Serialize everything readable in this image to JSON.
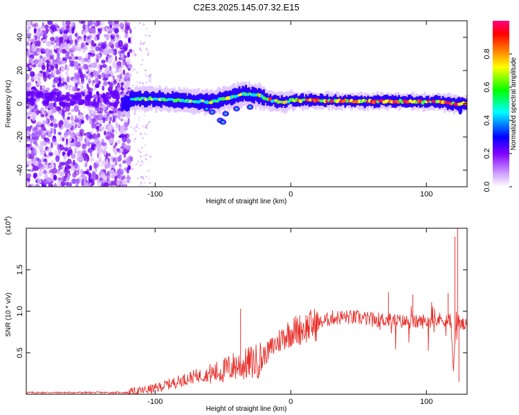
{
  "title": "C2E3.2025.145.07.32.E15",
  "chart_data": [
    {
      "type": "heatmap",
      "name": "spectrogram",
      "xlabel": "Height of straight line (km)",
      "ylabel": "Frequency (Hz)",
      "xlim": [
        -195,
        130
      ],
      "ylim": [
        -50,
        50
      ],
      "xticks": [
        -100,
        0,
        100
      ],
      "xtick_labels": [
        "-100",
        "0",
        "100"
      ],
      "yticks": [
        -40,
        -20,
        0,
        20,
        40
      ],
      "ytick_labels": [
        "-40",
        "-20",
        "0",
        "20",
        "40"
      ],
      "colorbar": {
        "label": "Normalized spectral amplitude",
        "range": [
          0,
          1
        ],
        "ticks": [
          0.0,
          0.2,
          0.4,
          0.6,
          0.8
        ],
        "tick_labels": [
          "0.0",
          "0.2",
          "0.4",
          "0.6",
          "0.8"
        ],
        "colors": [
          "#ffffff",
          "#c080ff",
          "#8000ff",
          "#0000ff",
          "#00ffff",
          "#00ff00",
          "#ffff00",
          "#ff8000",
          "#ff0000",
          "#ff0080"
        ]
      },
      "features": {
        "noise_region_x": [
          -195,
          -118
        ],
        "band_center_hz": [
          [
            -120,
            3
          ],
          [
            -100,
            3
          ],
          [
            -80,
            2
          ],
          [
            -60,
            1
          ],
          [
            -45,
            4
          ],
          [
            -35,
            6
          ],
          [
            -25,
            5
          ],
          [
            -15,
            2
          ],
          [
            -5,
            1
          ],
          [
            0,
            2
          ],
          [
            20,
            2
          ],
          [
            50,
            1.5
          ],
          [
            80,
            1.5
          ],
          [
            100,
            1
          ],
          [
            110,
            1
          ],
          [
            120,
            0
          ],
          [
            130,
            0
          ]
        ]
      }
    },
    {
      "type": "line",
      "name": "snr",
      "xlabel": "Height of straight line (km)",
      "ylabel": "SNR (10 * v/v)",
      "scale_label": "(x10^4)",
      "scale_base": "(x10",
      "scale_exp": "4",
      "scale_close": ")",
      "xlim": [
        -195,
        130
      ],
      "ylim": [
        0,
        2.0
      ],
      "xticks": [
        -100,
        0,
        100
      ],
      "xtick_labels": [
        "-100",
        "0",
        "100"
      ],
      "yticks": [
        0.5,
        1.0,
        1.5
      ],
      "ytick_labels": [
        "0.5",
        "1.0",
        "1.5"
      ],
      "color": "#e8302c",
      "series": [
        {
          "name": "SNR",
          "x": [
            -195,
            -150,
            -120,
            -110,
            -100,
            -90,
            -80,
            -70,
            -60,
            -50,
            -45,
            -40,
            -35,
            -30,
            -25,
            -20,
            -15,
            -10,
            -5,
            0,
            10,
            20,
            30,
            40,
            50,
            60,
            70,
            80,
            90,
            100,
            110,
            115,
            118,
            120,
            122,
            125,
            130
          ],
          "y": [
            0.02,
            0.02,
            0.02,
            0.04,
            0.07,
            0.12,
            0.17,
            0.22,
            0.24,
            0.28,
            0.32,
            0.35,
            0.35,
            0.38,
            0.4,
            0.45,
            0.55,
            0.62,
            0.7,
            0.75,
            0.8,
            0.85,
            0.92,
            0.93,
            0.92,
            0.9,
            0.9,
            0.88,
            0.87,
            0.88,
            0.9,
            0.9,
            0.88,
            0.3,
            0.92,
            0.85,
            0.82
          ]
        }
      ],
      "spikes": [
        {
          "x": -37,
          "y": 1.03
        },
        {
          "x": 72,
          "y": 1.23
        },
        {
          "x": 90,
          "y": 1.2
        },
        {
          "x": 116,
          "y": 1.22
        },
        {
          "x": 121,
          "y": 1.9
        },
        {
          "x": 123,
          "y": 2.0
        },
        {
          "x": 124,
          "y": 0.15
        }
      ]
    }
  ]
}
